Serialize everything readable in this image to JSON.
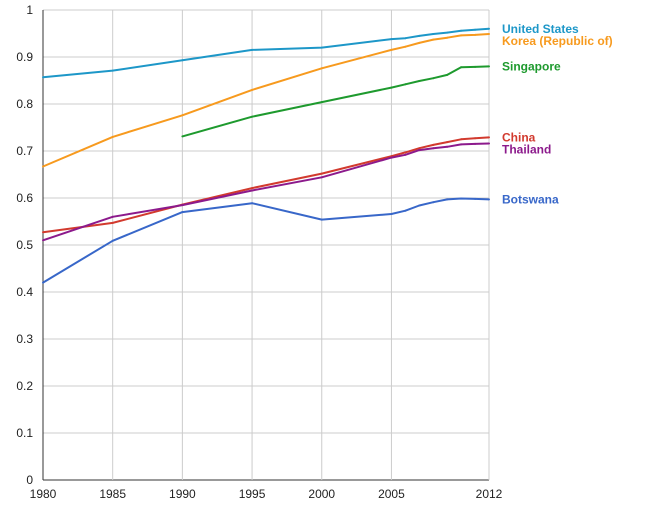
{
  "chart_data": {
    "type": "line",
    "title": "",
    "xlabel": "",
    "ylabel": "",
    "xlim": [
      1980,
      2012
    ],
    "ylim": [
      0,
      1
    ],
    "x_ticks": [
      "1980",
      "1985",
      "1990",
      "1995",
      "2000",
      "2005",
      "2012"
    ],
    "y_ticks": [
      "0",
      "0.1",
      "0.2",
      "0.3",
      "0.4",
      "0.5",
      "0.6",
      "0.7",
      "0.8",
      "0.9",
      "1"
    ],
    "grid": true,
    "legend": "right, labels beside line ends",
    "series": [
      {
        "name": "United States",
        "color": "#1d97c8",
        "points": [
          [
            1980,
            0.857
          ],
          [
            1985,
            0.871
          ],
          [
            1990,
            0.893
          ],
          [
            1995,
            0.915
          ],
          [
            2000,
            0.92
          ],
          [
            2005,
            0.938
          ],
          [
            2006,
            0.94
          ],
          [
            2007,
            0.945
          ],
          [
            2008,
            0.949
          ],
          [
            2009,
            0.952
          ],
          [
            2010,
            0.956
          ],
          [
            2011,
            0.958
          ],
          [
            2012,
            0.96
          ]
        ]
      },
      {
        "name": "Korea (Republic of)",
        "color": "#f79a1e",
        "points": [
          [
            1980,
            0.667
          ],
          [
            1985,
            0.73
          ],
          [
            1990,
            0.776
          ],
          [
            1995,
            0.83
          ],
          [
            2000,
            0.876
          ],
          [
            2005,
            0.915
          ],
          [
            2006,
            0.922
          ],
          [
            2007,
            0.93
          ],
          [
            2008,
            0.937
          ],
          [
            2009,
            0.941
          ],
          [
            2010,
            0.946
          ],
          [
            2011,
            0.947
          ],
          [
            2012,
            0.949
          ]
        ]
      },
      {
        "name": "Singapore",
        "color": "#1e9a2e",
        "points": [
          [
            1990,
            0.731
          ],
          [
            1995,
            0.773
          ],
          [
            2000,
            0.804
          ],
          [
            2005,
            0.835
          ],
          [
            2006,
            0.842
          ],
          [
            2007,
            0.849
          ],
          [
            2008,
            0.855
          ],
          [
            2009,
            0.862
          ],
          [
            2010,
            0.878
          ],
          [
            2011,
            0.879
          ],
          [
            2012,
            0.88
          ]
        ]
      },
      {
        "name": "China",
        "color": "#d23a2e",
        "points": [
          [
            1980,
            0.527
          ],
          [
            1985,
            0.547
          ],
          [
            1990,
            0.586
          ],
          [
            1995,
            0.621
          ],
          [
            2000,
            0.652
          ],
          [
            2005,
            0.689
          ],
          [
            2006,
            0.697
          ],
          [
            2007,
            0.706
          ],
          [
            2008,
            0.713
          ],
          [
            2009,
            0.719
          ],
          [
            2010,
            0.725
          ],
          [
            2011,
            0.727
          ],
          [
            2012,
            0.729
          ]
        ]
      },
      {
        "name": "Thailand",
        "color": "#8c1a8c",
        "points": [
          [
            1980,
            0.51
          ],
          [
            1985,
            0.56
          ],
          [
            1990,
            0.585
          ],
          [
            1995,
            0.616
          ],
          [
            2000,
            0.644
          ],
          [
            2005,
            0.686
          ],
          [
            2006,
            0.692
          ],
          [
            2007,
            0.702
          ],
          [
            2008,
            0.706
          ],
          [
            2009,
            0.709
          ],
          [
            2010,
            0.714
          ],
          [
            2011,
            0.715
          ],
          [
            2012,
            0.716
          ]
        ]
      },
      {
        "name": "Botswana",
        "color": "#3867c9",
        "points": [
          [
            1980,
            0.42
          ],
          [
            1985,
            0.509
          ],
          [
            1990,
            0.57
          ],
          [
            1995,
            0.589
          ],
          [
            2000,
            0.554
          ],
          [
            2005,
            0.566
          ],
          [
            2006,
            0.573
          ],
          [
            2007,
            0.584
          ],
          [
            2008,
            0.591
          ],
          [
            2009,
            0.597
          ],
          [
            2010,
            0.599
          ],
          [
            2011,
            0.598
          ],
          [
            2012,
            0.597
          ]
        ]
      }
    ]
  }
}
